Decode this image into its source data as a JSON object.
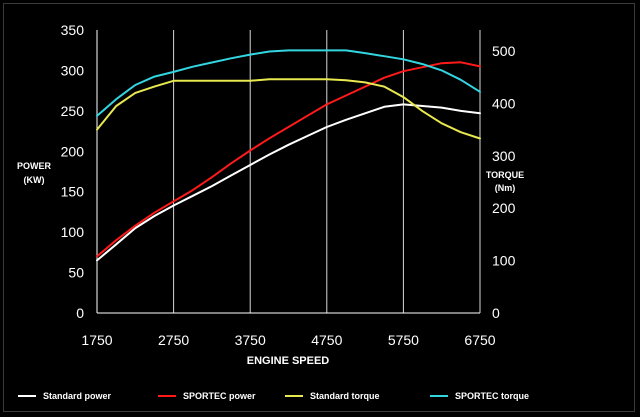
{
  "chart_data": {
    "type": "line",
    "title": "",
    "xlabel": "ENGINE SPEED",
    "ylabel_left": [
      "POWER",
      "(KW)"
    ],
    "ylabel_right": [
      "TORQUE",
      "(Nm)"
    ],
    "xlim": [
      1750,
      6750
    ],
    "ylim_left": [
      0,
      350
    ],
    "ylim_right": [
      0,
      540
    ],
    "x_ticks": [
      1750,
      2750,
      3750,
      4750,
      5750,
      6750
    ],
    "y_ticks_left": [
      0,
      50,
      100,
      150,
      200,
      250,
      300,
      350
    ],
    "y_ticks_right": [
      0,
      100,
      200,
      300,
      400,
      500
    ],
    "grid": "vertical",
    "legend_position": "bottom",
    "background": "#000000",
    "series": [
      {
        "name": "Standard power",
        "axis": "left",
        "color": "#ffffff",
        "x": [
          1750,
          2000,
          2250,
          2500,
          2750,
          3000,
          3250,
          3500,
          3750,
          4000,
          4250,
          4500,
          4750,
          5000,
          5250,
          5500,
          5750,
          6000,
          6250,
          6500,
          6750
        ],
        "y": [
          65,
          85,
          105,
          120,
          133,
          145,
          157,
          170,
          183,
          196,
          208,
          219,
          230,
          239,
          247,
          255,
          258,
          256,
          254,
          250,
          247
        ]
      },
      {
        "name": "SPORTEC power",
        "axis": "left",
        "color": "#ff1a1a",
        "x": [
          1750,
          2000,
          2250,
          2500,
          2750,
          3000,
          3250,
          3500,
          3750,
          4000,
          4250,
          4500,
          4750,
          5000,
          5250,
          5500,
          5750,
          6000,
          6250,
          6500,
          6750
        ],
        "y": [
          70,
          90,
          108,
          124,
          138,
          152,
          168,
          185,
          201,
          216,
          230,
          244,
          258,
          269,
          280,
          291,
          299,
          304,
          309,
          310,
          305
        ]
      },
      {
        "name": "Standard torque",
        "axis": "right",
        "color": "#e8e850",
        "x": [
          1750,
          2000,
          2250,
          2500,
          2750,
          3000,
          3250,
          3500,
          3750,
          4000,
          4250,
          4500,
          4750,
          5000,
          5250,
          5500,
          5750,
          6000,
          6250,
          6500,
          6750
        ],
        "y": [
          350,
          395,
          420,
          432,
          443,
          443,
          443,
          443,
          443,
          446,
          446,
          446,
          446,
          444,
          440,
          432,
          412,
          385,
          362,
          345,
          333
        ]
      },
      {
        "name": "SPORTEC torque",
        "axis": "right",
        "color": "#33d6e0",
        "x": [
          1750,
          2000,
          2250,
          2500,
          2750,
          3000,
          3250,
          3500,
          3750,
          4000,
          4250,
          4500,
          4750,
          5000,
          5250,
          5500,
          5750,
          6000,
          6250,
          6500,
          6750
        ],
        "y": [
          376,
          408,
          435,
          451,
          460,
          470,
          478,
          486,
          493,
          499,
          501,
          501,
          501,
          501,
          496,
          490,
          484,
          475,
          463,
          445,
          422
        ]
      }
    ]
  }
}
